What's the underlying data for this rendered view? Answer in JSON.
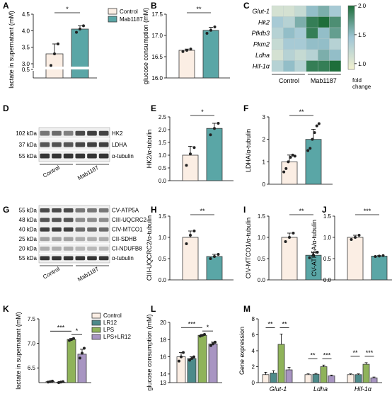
{
  "panel_letters": [
    "A",
    "B",
    "C",
    "D",
    "E",
    "F",
    "G",
    "H",
    "I",
    "J",
    "K",
    "L",
    "M"
  ],
  "colors": {
    "control": "#fbeee4",
    "mab": "#5aa6a6",
    "lr12": "#4d8a8a",
    "lps": "#8fb35a",
    "lpslr12": "#a895c2",
    "bar_edge": "#3a3a3a",
    "heat_low": "#f3f1cf",
    "heat_mid": "#9fc6d6",
    "heat_high": "#1e6e3a"
  },
  "legend_AB": {
    "items": [
      "Control",
      "Mab1187"
    ]
  },
  "legend_K": {
    "items": [
      "Control",
      "LR12",
      "LPS",
      "LPS+LR12"
    ]
  },
  "blots": {
    "D": {
      "labels": [
        "HK2",
        "LDHA",
        "α-tubulin"
      ],
      "kda": [
        "102 kDa",
        "37 kDa",
        "55 kDa"
      ],
      "groups": [
        "Control",
        "Mab1187"
      ]
    },
    "G": {
      "labels": [
        "CV-ATP5A",
        "CIII-UQCRC2",
        "CIV-MTCO1",
        "CII-SDHB",
        "CI-NDUFB8",
        "α-tubulin"
      ],
      "kda": [
        "55 kDa",
        "48 kDa",
        "40 kDa",
        "25 kDa",
        "20 kDa",
        "55 kDa"
      ],
      "groups": [
        "Control",
        "Mab1187"
      ]
    }
  },
  "chart_data": [
    {
      "panel": "A",
      "type": "bar",
      "categories": [
        "Control",
        "Mab1187"
      ],
      "values": [
        3.3,
        4.05
      ],
      "points": [
        [
          2.95,
          3.3,
          3.6
        ],
        [
          3.95,
          4.05,
          4.15
        ]
      ],
      "errors": [
        0.3,
        0.1
      ],
      "ylabel": "lactate in supernatant (mM)",
      "ylim": [
        0,
        4.5
      ],
      "break_range": [
        0.5,
        3.0
      ],
      "yticks_labels": [
        "0.5",
        "3.0",
        "3.5",
        "4.0",
        "4.5"
      ],
      "significance": "*"
    },
    {
      "panel": "B",
      "type": "bar",
      "categories": [
        "Control",
        "Mab1187"
      ],
      "values": [
        16.65,
        17.12
      ],
      "points": [
        [
          16.62,
          16.65,
          16.68
        ],
        [
          17.05,
          17.12,
          17.2
        ]
      ],
      "errors": [
        0.03,
        0.07
      ],
      "ylabel": "glucose consumption (mM)",
      "ylim": [
        16.0,
        17.5
      ],
      "yticks_labels": [
        "16.0",
        "16.5",
        "17.0",
        "17.5"
      ],
      "significance": "**"
    },
    {
      "panel": "C",
      "type": "heatmap",
      "rows": [
        "Glut-1",
        "Hk2",
        "Pfkfb3",
        "Pkm2",
        "Ldha",
        "Hif-1α"
      ],
      "columns_groups": [
        "Control",
        "Mab1187"
      ],
      "values": [
        [
          1.1,
          1.1,
          1.2,
          1.5,
          1.6,
          1.4
        ],
        [
          1.4,
          1.3,
          1.6,
          1.9,
          2.0,
          1.8
        ],
        [
          1.3,
          1.5,
          1.4,
          1.9,
          1.5,
          1.7
        ],
        [
          1.2,
          1.4,
          1.4,
          1.5,
          1.5,
          1.3
        ],
        [
          1.1,
          1.3,
          1.2,
          1.3,
          1.6,
          1.5
        ],
        [
          1.3,
          1.5,
          1.3,
          1.9,
          1.9,
          2.0
        ]
      ],
      "colorbar_ticks": [
        "1.0",
        "1.5",
        "2.0"
      ],
      "colorbar_label": "fold change"
    },
    {
      "panel": "E",
      "type": "bar",
      "categories": [
        "Control",
        "Mab1187"
      ],
      "values": [
        1.0,
        2.05
      ],
      "points": [
        [
          0.6,
          1.05,
          1.3
        ],
        [
          1.8,
          2.05,
          2.25
        ]
      ],
      "errors": [
        0.35,
        0.2
      ],
      "ylabel": "HK2/α-tubulin",
      "ylim": [
        0,
        2.5
      ],
      "yticks_labels": [
        "0.0",
        "0.5",
        "1.0",
        "1.5",
        "2.0",
        "2.5"
      ],
      "significance": "*"
    },
    {
      "panel": "F",
      "type": "bar",
      "categories": [
        "Control",
        "Mab1187"
      ],
      "values": [
        1.0,
        2.0
      ],
      "points": [
        [
          0.55,
          0.7,
          1.0,
          1.2,
          1.3,
          1.25
        ],
        [
          1.5,
          1.6,
          2.0,
          2.3,
          2.6,
          2.7
        ]
      ],
      "errors": [
        0.3,
        0.45
      ],
      "ylabel": "LDHA/α-tubulin",
      "ylim": [
        0,
        3
      ],
      "yticks_labels": [
        "0",
        "1",
        "2",
        "3"
      ],
      "significance": "**"
    },
    {
      "panel": "H",
      "type": "bar",
      "categories": [
        "Control",
        "Mab1187"
      ],
      "values": [
        1.0,
        0.55
      ],
      "points": [
        [
          0.85,
          1.05,
          1.15
        ],
        [
          0.5,
          0.55,
          0.6
        ]
      ],
      "errors": [
        0.15,
        0.05
      ],
      "ylabel": "CIII-UQCRC2/α-tubulin",
      "ylim": [
        0,
        1.5
      ],
      "yticks_labels": [
        "0.0",
        "0.5",
        "1.0",
        "1.5"
      ],
      "significance": "**"
    },
    {
      "panel": "I",
      "type": "bar",
      "categories": [
        "Control",
        "Mab1187"
      ],
      "values": [
        1.0,
        0.58
      ],
      "points": [
        [
          0.9,
          1.0,
          1.1
        ],
        [
          0.52,
          0.58,
          0.65
        ]
      ],
      "errors": [
        0.1,
        0.06
      ],
      "ylabel": "CIV-MTCO1/α-tubulin",
      "ylim": [
        0,
        1.5
      ],
      "yticks_labels": [
        "0.0",
        "0.5",
        "1.0",
        "1.5"
      ],
      "significance": "**"
    },
    {
      "panel": "J",
      "type": "bar",
      "categories": [
        "Control",
        "Mab1187"
      ],
      "values": [
        1.0,
        0.56
      ],
      "points": [
        [
          0.95,
          1.0,
          1.05
        ],
        [
          0.55,
          0.56,
          0.57
        ]
      ],
      "errors": [
        0.05,
        0.01
      ],
      "ylabel": "CV-ATP5A/α-tubulin",
      "ylim": [
        0,
        1.5
      ],
      "yticks_labels": [
        "0.0",
        "0.5",
        "1.0",
        "1.5"
      ],
      "significance": "***"
    },
    {
      "panel": "K",
      "type": "bar",
      "categories": [
        "Control",
        "LR12",
        "LPS",
        "LPS+LR12"
      ],
      "values": [
        6.22,
        6.21,
        7.08,
        6.78
      ],
      "points": [
        [
          6.21,
          6.22,
          6.23
        ],
        [
          6.2,
          6.21,
          6.22
        ],
        [
          7.06,
          7.08,
          7.1
        ],
        [
          6.7,
          6.8,
          6.9
        ]
      ],
      "errors": [
        0.01,
        0.01,
        0.02,
        0.1
      ],
      "ylabel": "lactate in supernatant (mM)",
      "ylim": [
        6.2,
        7.5
      ],
      "yticks_labels": [
        "6.5",
        "7.0",
        "7.5"
      ],
      "significance": [
        "***",
        "*"
      ]
    },
    {
      "panel": "L",
      "type": "bar",
      "categories": [
        "Control",
        "LR12",
        "LPS",
        "LPS+LR12"
      ],
      "values": [
        16.0,
        15.8,
        18.5,
        17.5
      ],
      "points": [
        [
          15.5,
          16.0,
          16.5
        ],
        [
          15.6,
          15.8,
          16.0
        ],
        [
          18.4,
          18.5,
          18.6
        ],
        [
          17.3,
          17.5,
          17.7
        ]
      ],
      "errors": [
        0.5,
        0.2,
        0.1,
        0.2
      ],
      "ylabel": "glucose consumption (mM)",
      "ylim": [
        13,
        20
      ],
      "yticks_labels": [
        "13",
        "14",
        "16",
        "18",
        "20"
      ],
      "significance": [
        "***",
        "*"
      ]
    },
    {
      "panel": "M",
      "type": "bar",
      "categories": [
        "Glut-1",
        "Ldha",
        "Hif-1α"
      ],
      "series": [
        {
          "name": "Control",
          "values": [
            1.0,
            1.0,
            1.0
          ]
        },
        {
          "name": "LR12",
          "values": [
            1.2,
            1.05,
            1.0
          ]
        },
        {
          "name": "LPS",
          "values": [
            4.8,
            2.0,
            2.3
          ]
        },
        {
          "name": "LPS+LR12",
          "values": [
            1.6,
            0.85,
            0.6
          ]
        }
      ],
      "errors": [
        [
          0.3,
          0.3,
          1.3,
          0.3
        ],
        [
          0.1,
          0.1,
          0.2,
          0.1
        ],
        [
          0.1,
          0.1,
          0.2,
          0.1
        ]
      ],
      "ylabel": "Gene expression",
      "ylim": [
        0,
        8
      ],
      "yticks_labels": [
        "0",
        "2",
        "4",
        "6",
        "8"
      ],
      "significance": [
        [
          "**",
          "**"
        ],
        [
          "**",
          "***"
        ],
        [
          "**",
          "***"
        ]
      ]
    }
  ]
}
